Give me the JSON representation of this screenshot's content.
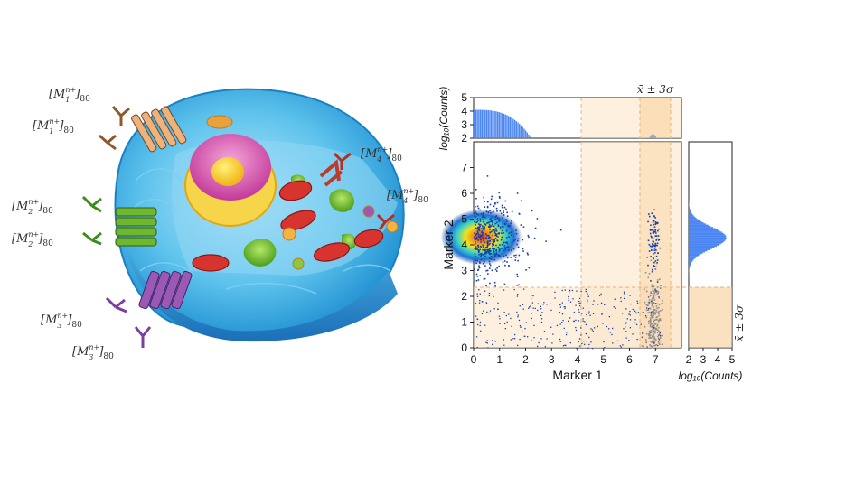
{
  "cell_labels": [
    {
      "id": "m1a",
      "text": "M",
      "sub": "1",
      "sup": "n+",
      "count": "80"
    },
    {
      "id": "m1b",
      "text": "M",
      "sub": "1",
      "sup": "n+",
      "count": "80"
    },
    {
      "id": "m2a",
      "text": "M",
      "sub": "2",
      "sup": "n+",
      "count": "80"
    },
    {
      "id": "m2b",
      "text": "M",
      "sub": "2",
      "sup": "n+",
      "count": "80"
    },
    {
      "id": "m3a",
      "text": "M",
      "sub": "3",
      "sup": "n+",
      "count": "80"
    },
    {
      "id": "m3b",
      "text": "M",
      "sub": "3",
      "sup": "n+",
      "count": "80"
    },
    {
      "id": "m4a",
      "text": "M",
      "sub": "4",
      "sup": "n+",
      "count": "80"
    },
    {
      "id": "m4b",
      "text": "M",
      "sub": "4",
      "sup": "n+",
      "count": "80"
    }
  ],
  "receptor_colors": {
    "m1": "#f0b27a",
    "m2": "#5a9e2f",
    "m3": "#8e44ad",
    "m4": "#c0392b"
  },
  "plot": {
    "xlabel": "Marker 1",
    "ylabel": "Marker 2",
    "top_hist_ylabel": "log₁₀(Counts)",
    "right_hist_xlabel": "log₁₀(Counts)",
    "x_ticks": [
      "0",
      "1",
      "2",
      "3",
      "4",
      "5",
      "6",
      "7"
    ],
    "y_ticks": [
      "0",
      "1",
      "2",
      "3",
      "4",
      "5",
      "6",
      "7"
    ],
    "top_hist_ticks": [
      "2",
      "3",
      "4",
      "5"
    ],
    "right_hist_ticks": [
      "2",
      "3",
      "4",
      "5"
    ],
    "sigma_label_top": "x̄ ± 3σ",
    "sigma_label_right": "x̄ ± 3σ"
  },
  "chart_data": {
    "type": "scatter",
    "xlabel": "Marker 1",
    "ylabel": "Marker 2",
    "xlim": [
      0,
      8
    ],
    "ylim": [
      0,
      8
    ],
    "grid": false,
    "populations": [
      {
        "center": [
          0.3,
          4.3
        ],
        "spread": [
          0.6,
          0.6
        ],
        "density": "high"
      },
      {
        "center": [
          6.9,
          4.2
        ],
        "spread": [
          0.1,
          0.6
        ],
        "density": "low"
      },
      {
        "center": [
          6.9,
          1.0
        ],
        "spread": [
          0.15,
          0.8
        ],
        "density": "medium"
      }
    ],
    "highlight_x_range": [
      4.0,
      8.0
    ],
    "highlight_y_range": [
      0,
      2.3
    ],
    "sigma_band_x": [
      6.4,
      7.4
    ],
    "top_histogram": {
      "ylabel": "log₁₀(Counts)",
      "ylim": [
        2,
        5
      ]
    },
    "right_histogram": {
      "xlabel": "log₁₀(Counts)",
      "xlim": [
        2,
        5
      ]
    }
  }
}
